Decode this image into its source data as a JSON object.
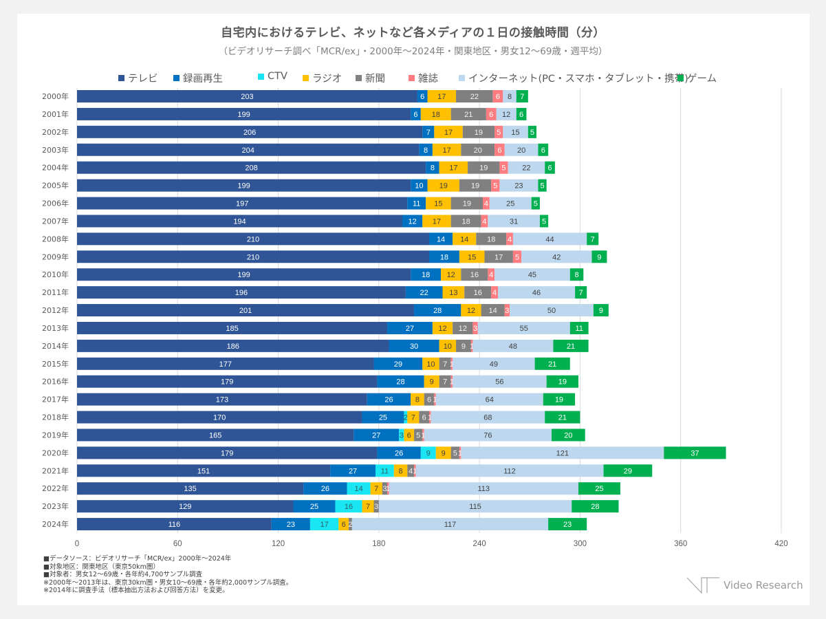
{
  "chart_data": {
    "type": "bar",
    "orientation": "horizontal",
    "stacked": true,
    "title": "自宅内におけるテレビ、ネットなど各メディアの１日の接触時間（分）",
    "subtitle": "（ビデオリサーチ調べ「MCR/ex」・2000年～2024年・関東地区・男女12～69歳・週平均）",
    "xlabel": "",
    "ylabel": "",
    "xlim": [
      0,
      420
    ],
    "xticks": [
      "0",
      "60",
      "120",
      "180",
      "240",
      "300",
      "360",
      "420"
    ],
    "xtick_values": [
      0,
      60,
      120,
      180,
      240,
      300,
      360,
      420
    ],
    "grid": true,
    "legend_position": "top",
    "categories": [
      "2000年",
      "2001年",
      "2002年",
      "2003年",
      "2004年",
      "2005年",
      "2006年",
      "2007年",
      "2008年",
      "2009年",
      "2010年",
      "2011年",
      "2012年",
      "2013年",
      "2014年",
      "2015年",
      "2016年",
      "2017年",
      "2018年",
      "2019年",
      "2020年",
      "2021年",
      "2022年",
      "2023年",
      "2024年"
    ],
    "series": [
      {
        "name": "テレビ",
        "color": "#2F5597",
        "label_color": "#ffffff",
        "values": [
          203,
          199,
          206,
          204,
          208,
          199,
          197,
          194,
          210,
          210,
          199,
          196,
          201,
          185,
          186,
          177,
          179,
          173,
          170,
          165,
          179,
          151,
          135,
          129,
          116
        ]
      },
      {
        "name": "録画再生",
        "color": "#0070C0",
        "label_color": "#ffffff",
        "values": [
          6,
          6,
          7,
          8,
          8,
          10,
          11,
          12,
          14,
          18,
          18,
          22,
          28,
          27,
          30,
          29,
          28,
          26,
          25,
          27,
          26,
          27,
          26,
          25,
          23
        ]
      },
      {
        "name": "CTV",
        "color": "#19E6F2",
        "label_color": "#2f5f66",
        "values": [
          0,
          0,
          0,
          0,
          0,
          0,
          0,
          0,
          0,
          0,
          0,
          0,
          0,
          0,
          0,
          0,
          0,
          0,
          2,
          3,
          9,
          11,
          14,
          16,
          17
        ]
      },
      {
        "name": "ラジオ",
        "color": "#FFC000",
        "label_color": "#404040",
        "values": [
          17,
          18,
          17,
          17,
          17,
          19,
          15,
          17,
          14,
          15,
          12,
          13,
          12,
          12,
          10,
          10,
          9,
          8,
          7,
          6,
          9,
          8,
          7,
          7,
          6
        ]
      },
      {
        "name": "新聞",
        "color": "#808080",
        "label_color": "#f2f2f2",
        "values": [
          22,
          21,
          19,
          20,
          19,
          19,
          19,
          18,
          18,
          17,
          16,
          16,
          14,
          12,
          9,
          7,
          7,
          6,
          6,
          5,
          5,
          4,
          3,
          3,
          2
        ]
      },
      {
        "name": "雑誌",
        "color": "#FF7C80",
        "label_color": "#ffffff",
        "values": [
          6,
          6,
          5,
          6,
          5,
          5,
          4,
          4,
          4,
          5,
          4,
          4,
          3,
          3,
          1,
          1,
          1,
          1,
          1,
          1,
          1,
          1,
          1,
          0,
          0
        ]
      },
      {
        "name": "インターネット(PC・スマホ・タブレット・携帯)",
        "color": "#BDD7EE",
        "label_color": "#404040",
        "values": [
          8,
          12,
          15,
          20,
          22,
          23,
          25,
          31,
          44,
          42,
          45,
          46,
          50,
          55,
          48,
          49,
          56,
          64,
          68,
          76,
          121,
          112,
          113,
          115,
          117
        ]
      },
      {
        "name": "ゲーム",
        "color": "#00B050",
        "label_color": "#ffffff",
        "values": [
          7,
          6,
          5,
          6,
          6,
          5,
          5,
          5,
          7,
          9,
          8,
          7,
          9,
          11,
          21,
          21,
          19,
          19,
          21,
          20,
          37,
          29,
          25,
          28,
          23
        ]
      }
    ]
  },
  "notes": [
    "■データソース：ビデオリサーチ「MCR/ex」2000年～2024年",
    "■対象地区：関東地区（東京50km圏）",
    "■対象者：男女12～69歳・各年約4,700サンプル調査",
    "※2000年～2013年は、東京30km圏・男女10～69歳・各年約2,000サンプル調査。",
    "※2014年に調査手法（標本抽出方法および回答方法）を変更。"
  ],
  "logo": {
    "text": "Video Research"
  }
}
